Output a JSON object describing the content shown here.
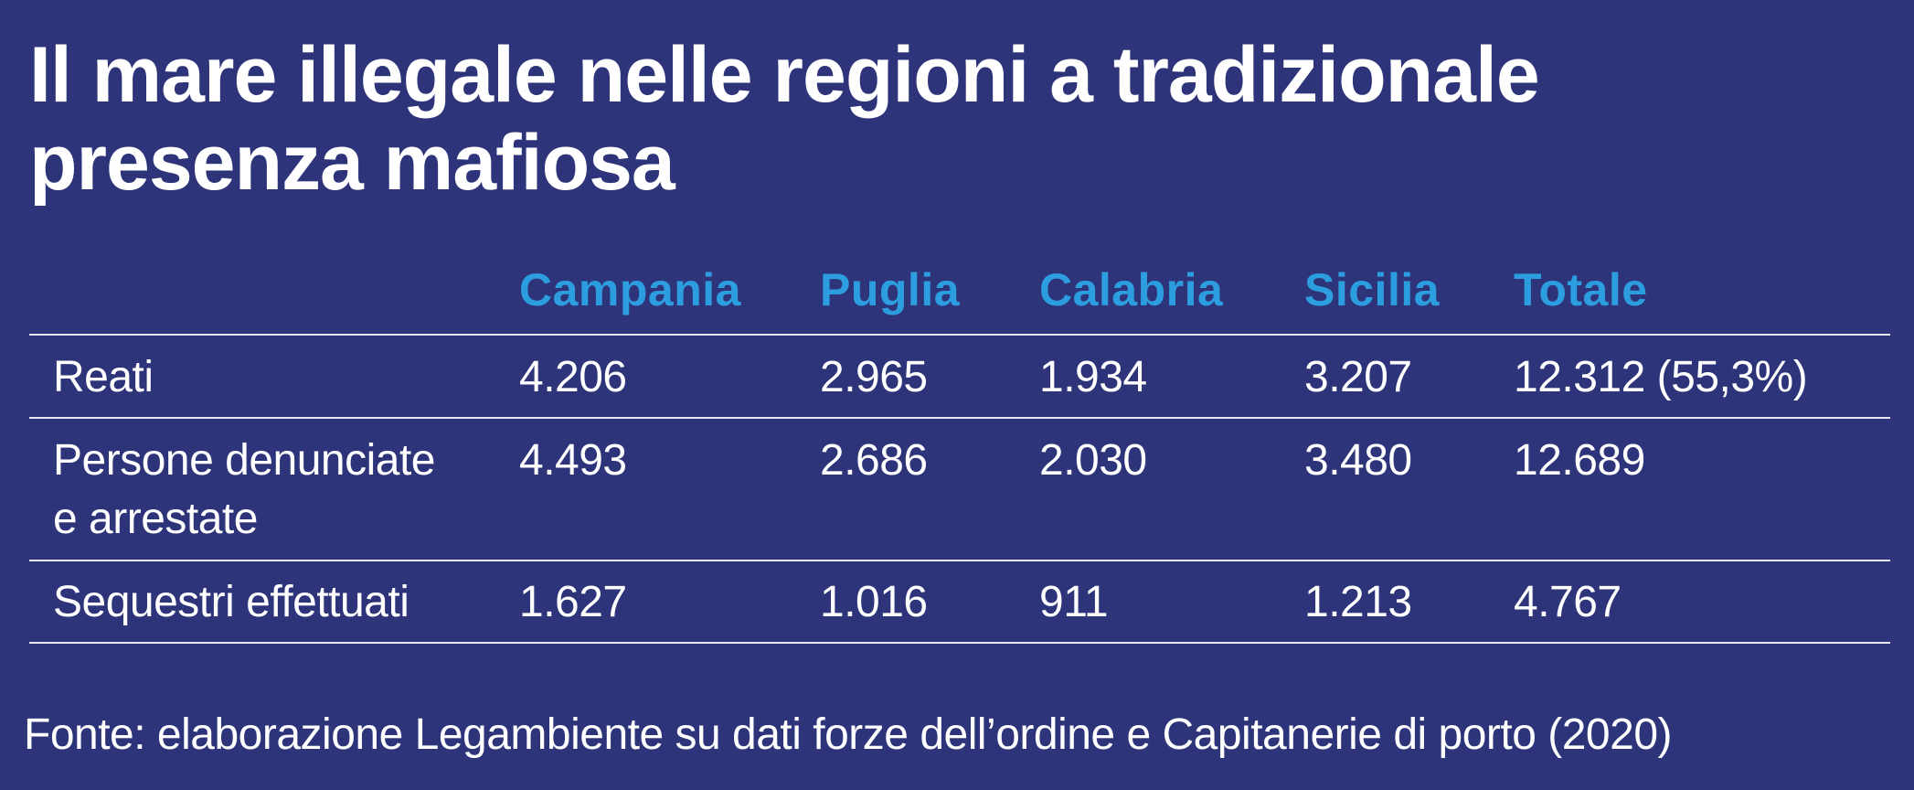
{
  "title": {
    "line1": "Il mare illegale nelle regioni a tradizionale",
    "line2": "presenza mafiosa"
  },
  "chart_data": {
    "type": "table",
    "columns": [
      "Campania",
      "Puglia",
      "Calabria",
      "Sicilia",
      "Totale"
    ],
    "rows": [
      {
        "label_line1": "Reati",
        "label_line2": "",
        "values": [
          "4.206",
          "2.965",
          "1.934",
          "3.207",
          "12.312 (55,3%)"
        ]
      },
      {
        "label_line1": "Persone denunciate",
        "label_line2": "e arrestate",
        "values": [
          "4.493",
          "2.686",
          "2.030",
          "3.480",
          "12.689"
        ]
      },
      {
        "label_line1": "Sequestri effettuati",
        "label_line2": "",
        "values": [
          "1.627",
          "1.016",
          "911",
          "1.213",
          "4.767"
        ]
      }
    ]
  },
  "source": "Fonte: elaborazione Legambiente su dati forze dell’ordine e Capitanerie di porto (2020)",
  "colors": {
    "background": "#2e3479",
    "header": "#2c9ee0",
    "text": "#ffffff",
    "rule": "#e8e8f2"
  }
}
